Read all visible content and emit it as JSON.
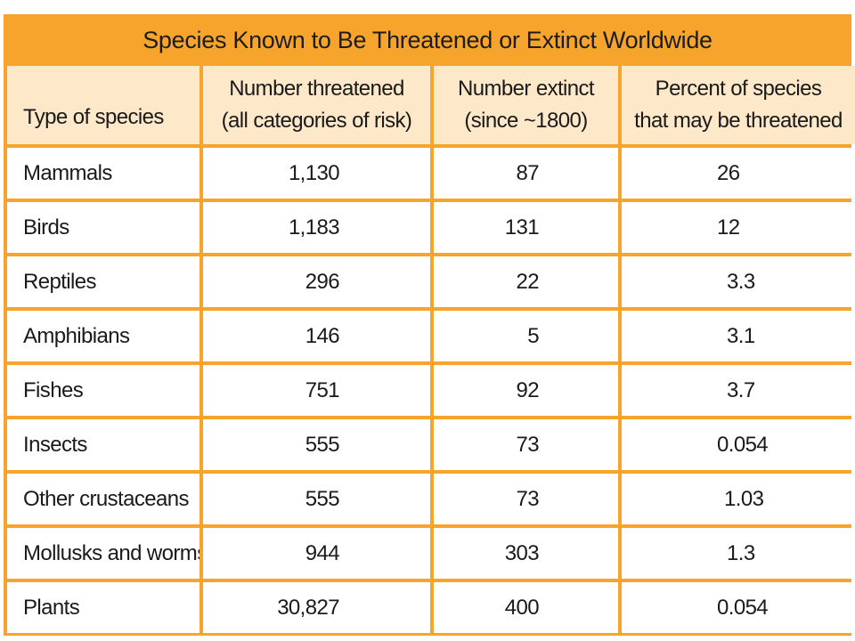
{
  "table": {
    "title": "Species Known to Be Threatened or Extinct Worldwide",
    "headers": [
      {
        "line1": "",
        "line2": "Type of species"
      },
      {
        "line1": "Number threatened",
        "line2": "(all categories of risk)"
      },
      {
        "line1": "Number extinct",
        "line2": "(since ~1800)"
      },
      {
        "line1": "Percent of species",
        "line2": "that may be threatened"
      }
    ],
    "rows": [
      {
        "type": "Mammals",
        "threatened": "1,130",
        "extinct": "87",
        "percent": "26"
      },
      {
        "type": "Birds",
        "threatened": "1,183",
        "extinct": "131",
        "percent": "12"
      },
      {
        "type": "Reptiles",
        "threatened": "296",
        "extinct": "22",
        "percent": "3.3"
      },
      {
        "type": "Amphibians",
        "threatened": "146",
        "extinct": "5",
        "percent": "3.1"
      },
      {
        "type": "Fishes",
        "threatened": "751",
        "extinct": "92",
        "percent": "3.7"
      },
      {
        "type": "Insects",
        "threatened": "555",
        "extinct": "73",
        "percent": "0.054"
      },
      {
        "type": "Other crustaceans",
        "threatened": "555",
        "extinct": "73",
        "percent": "1.03"
      },
      {
        "type": "Mollusks and worms",
        "threatened": "944",
        "extinct": "303",
        "percent": "1.3"
      },
      {
        "type": "Plants",
        "threatened": "30,827",
        "extinct": "400",
        "percent": "0.054"
      }
    ],
    "colors": {
      "frame": "#f6a42c",
      "header_fill": "#fde8c9",
      "cell_fill": "#ffffff",
      "text": "#1a1a1a"
    }
  }
}
